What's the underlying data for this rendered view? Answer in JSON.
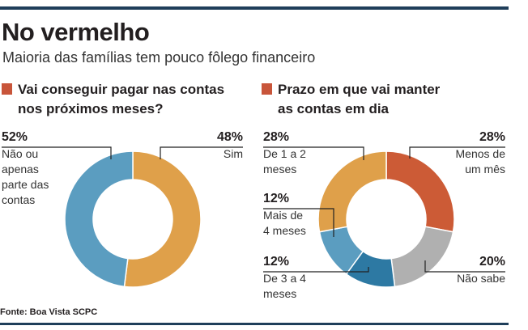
{
  "header": {
    "title": "No vermelho",
    "subtitle": "Maioria das famílias tem pouco fôlego financeiro"
  },
  "source": "Fonte: Boa Vista SCPC",
  "colors": {
    "rule": "#1f3e5a",
    "marker": "#c8553a",
    "orange": "#dfa04a",
    "blue": "#5b9dc0",
    "red": "#cc5b36",
    "gray": "#b0b0b0",
    "darkblue": "#2d79a3",
    "leader": "#222222"
  },
  "chart_data": [
    {
      "type": "pie",
      "title": "Vai conseguir pagar nas contas\nnos próximos meses?",
      "series": [
        {
          "pct": "52%",
          "label": "Não ou\napenas\nparte das\ncontas",
          "value": 52,
          "color": "#dfa04a"
        },
        {
          "pct": "48%",
          "label": "Sim",
          "value": 48,
          "color": "#5b9dc0"
        }
      ]
    },
    {
      "type": "pie",
      "title": "Prazo em que vai manter\nas contas em dia",
      "series": [
        {
          "pct": "28%",
          "label": "Menos de\num mês",
          "value": 28,
          "color": "#cc5b36"
        },
        {
          "pct": "20%",
          "label": "Não sabe",
          "value": 20,
          "color": "#b0b0b0"
        },
        {
          "pct": "12%",
          "label": "De 3 a 4\nmeses",
          "value": 12,
          "color": "#2d79a3"
        },
        {
          "pct": "12%",
          "label": "Mais de\n4 meses",
          "value": 12,
          "color": "#5b9dc0"
        },
        {
          "pct": "28%",
          "label": "De 1 a 2\nmeses",
          "value": 28,
          "color": "#dfa04a"
        }
      ]
    }
  ]
}
